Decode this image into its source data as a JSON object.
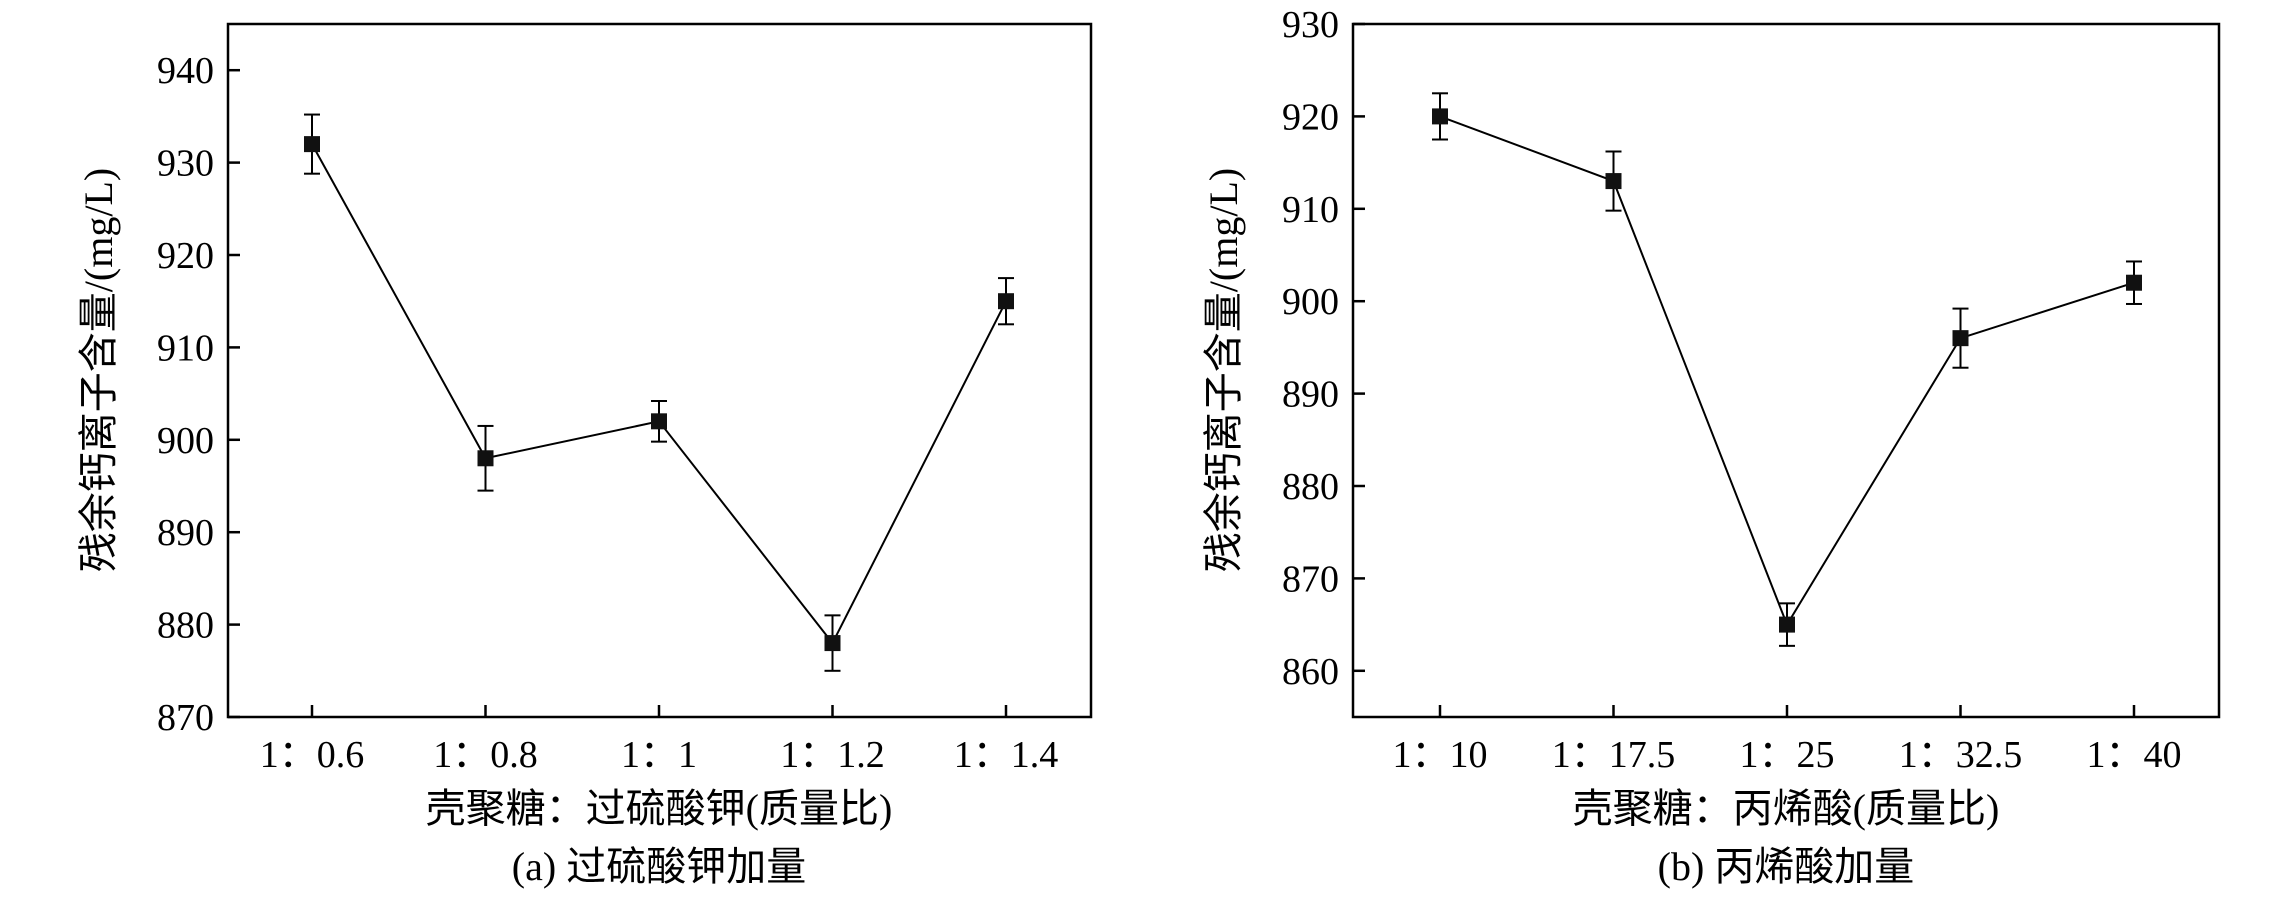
{
  "chart_data": [
    {
      "type": "line",
      "caption": "(a) 过硫酸钾加量",
      "xlabel": "壳聚糖：过硫酸钾(质量比)",
      "ylabel": "残余钙离子含量/(mg/L)",
      "categories": [
        "1：0.6",
        "1：0.8",
        "1：1",
        "1：1.2",
        "1：1.4"
      ],
      "values": [
        932,
        898,
        902,
        878,
        915
      ],
      "errors": [
        3.2,
        3.5,
        2.2,
        3.0,
        2.5
      ],
      "ylim": [
        870,
        945
      ],
      "yticks": [
        870,
        880,
        890,
        900,
        910,
        920,
        930,
        940
      ],
      "marker": "square",
      "line_color": "#000000",
      "grid": false,
      "legend": "none"
    },
    {
      "type": "line",
      "caption": "(b) 丙烯酸加量",
      "xlabel": "壳聚糖：丙烯酸(质量比)",
      "ylabel": "残余钙离子含量/(mg/L)",
      "categories": [
        "1：10",
        "1：17.5",
        "1：25",
        "1：32.5",
        "1：40"
      ],
      "values": [
        920,
        913,
        865,
        896,
        902
      ],
      "errors": [
        2.5,
        3.2,
        2.3,
        3.2,
        2.3
      ],
      "ylim": [
        855,
        930
      ],
      "yticks": [
        860,
        870,
        880,
        890,
        900,
        910,
        920,
        930
      ],
      "marker": "square",
      "line_color": "#000000",
      "grid": false,
      "legend": "none"
    }
  ]
}
